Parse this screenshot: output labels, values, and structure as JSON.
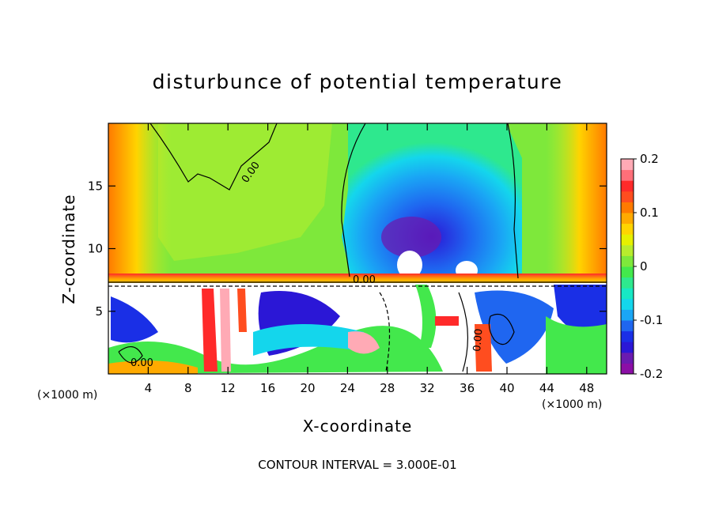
{
  "chart_data": {
    "type": "heatmap",
    "title": "disturbunce of potential temperature",
    "xlabel": "X-coordinate",
    "ylabel": "Z-coordinate",
    "x_unit": "(×1000 m)",
    "x_range": [
      0,
      50
    ],
    "y_range": [
      0,
      20
    ],
    "x_ticks": [
      4,
      8,
      12,
      16,
      20,
      24,
      28,
      32,
      36,
      40,
      44,
      48
    ],
    "y_ticks": [
      5,
      10,
      15
    ],
    "colorbar": {
      "range": [
        -0.2,
        0.2
      ],
      "labels": [
        "0.2",
        "0.1",
        "0",
        "-0.1",
        "-0.2"
      ],
      "label_values": [
        0.2,
        0.1,
        0,
        -0.1,
        -0.2
      ],
      "colors": [
        "#8b0fa6",
        "#6a1bb0",
        "#2b17d6",
        "#1a2fe6",
        "#1f66f0",
        "#1aa6f5",
        "#14d6ec",
        "#17e8c4",
        "#2ee88e",
        "#43e84c",
        "#7ee83b",
        "#b8ec2d",
        "#e6f000",
        "#ffd400",
        "#ffaa00",
        "#ff7a00",
        "#ff4d1f",
        "#ff2a2a",
        "#ff6f79",
        "#ffaab5"
      ]
    },
    "contour_labels": [
      "0.00",
      "0.00",
      "0.00",
      "0.00"
    ],
    "note": "CONTOUR INTERVAL = 3.000E-01"
  }
}
